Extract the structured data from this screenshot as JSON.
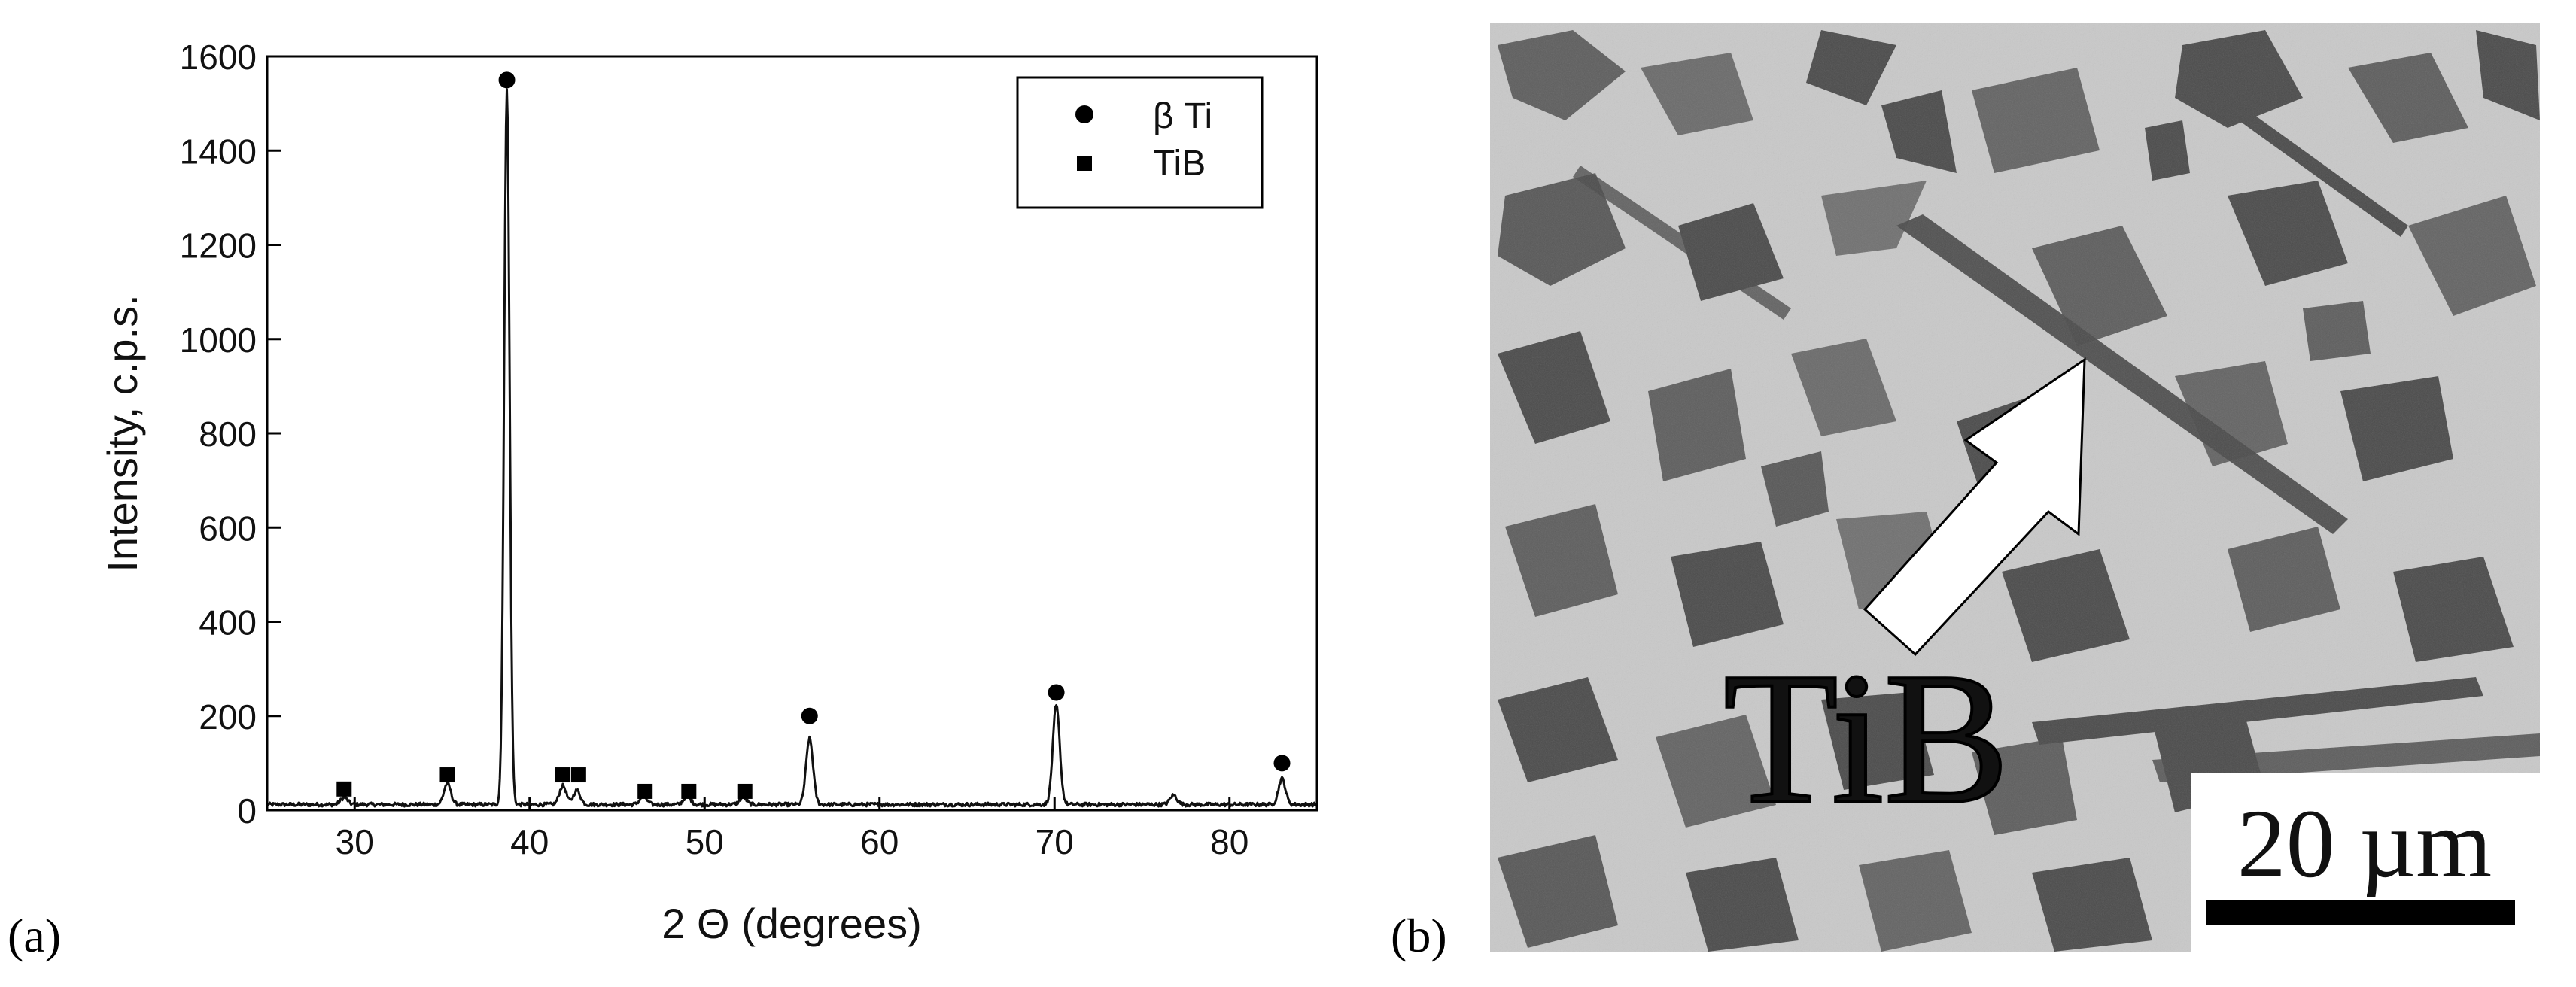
{
  "panel_a": {
    "label": "(a)"
  },
  "panel_b": {
    "label": "(b)",
    "arrow_label": "TiB",
    "scale_bar_label": "20 µm"
  },
  "colors": {
    "trace": "#111111",
    "marker": "#000000",
    "micrograph_matrix": "#c9c9c9",
    "micrograph_phase": "#4a4a4a",
    "arrow_fill": "#ffffff"
  },
  "chart_data": {
    "type": "line",
    "title": "",
    "xlabel": "2 Θ (degrees)",
    "ylabel": "Intensity, c.p.s.",
    "xlim": [
      25,
      85
    ],
    "ylim": [
      0,
      1600
    ],
    "xticks": [
      30,
      40,
      50,
      60,
      70,
      80
    ],
    "yticks": [
      0,
      200,
      400,
      600,
      800,
      1000,
      1200,
      1400,
      1600
    ],
    "grid": false,
    "legend_position": "top-right",
    "baseline": 12,
    "peaks": [
      {
        "x": 29.4,
        "y": 15
      },
      {
        "x": 35.3,
        "y": 45
      },
      {
        "x": 38.7,
        "y": 1520
      },
      {
        "x": 41.9,
        "y": 40
      },
      {
        "x": 42.7,
        "y": 30
      },
      {
        "x": 46.5,
        "y": 18
      },
      {
        "x": 49.0,
        "y": 18
      },
      {
        "x": 52.2,
        "y": 15
      },
      {
        "x": 56.0,
        "y": 140
      },
      {
        "x": 70.1,
        "y": 210
      },
      {
        "x": 76.8,
        "y": 20
      },
      {
        "x": 83.0,
        "y": 55
      }
    ],
    "series": [
      {
        "name": "β Ti",
        "marker": "circle",
        "points": [
          [
            38.7,
            1550
          ],
          [
            56.0,
            200
          ],
          [
            70.1,
            250
          ],
          [
            83.0,
            100
          ]
        ]
      },
      {
        "name": "TiB",
        "marker": "square",
        "points": [
          [
            29.4,
            45
          ],
          [
            35.3,
            75
          ],
          [
            41.9,
            75
          ],
          [
            42.8,
            75
          ],
          [
            46.6,
            40
          ],
          [
            49.1,
            40
          ],
          [
            52.3,
            40
          ]
        ]
      }
    ]
  }
}
